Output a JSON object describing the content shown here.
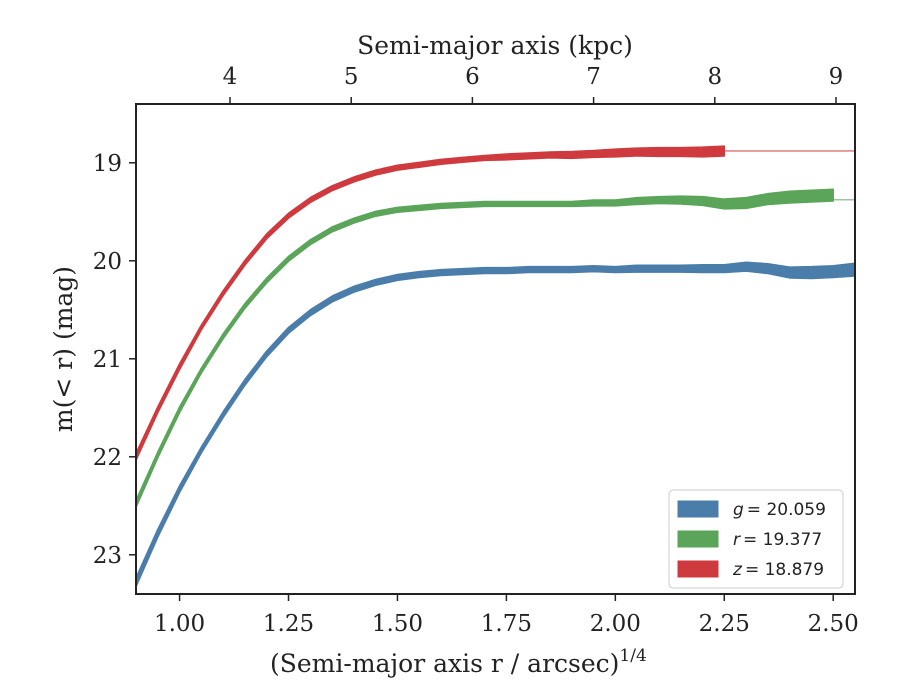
{
  "chart_data": {
    "type": "line",
    "title": "",
    "xlabel": "(Semi-major axis r / arcsec)",
    "xlabel_superscript": "1/4",
    "top_xlabel": "Semi-major axis (kpc)",
    "ylabel": "m(< r) (mag)",
    "xlim": [
      0.9,
      2.55
    ],
    "ylim": [
      23.4,
      18.4
    ],
    "y_inverted": true,
    "xticks": [
      1.0,
      1.25,
      1.5,
      1.75,
      2.0,
      2.25,
      2.5
    ],
    "xtick_labels": [
      "1.00",
      "1.25",
      "1.50",
      "1.75",
      "2.00",
      "2.25",
      "2.50"
    ],
    "top_xticks_kpc": [
      4,
      5,
      6,
      7,
      8,
      9
    ],
    "top_xtick_labels": [
      "4",
      "5",
      "6",
      "7",
      "8",
      "9"
    ],
    "yticks": [
      19,
      20,
      21,
      22,
      23
    ],
    "ytick_labels": [
      "19",
      "20",
      "21",
      "22",
      "23"
    ],
    "grid": false,
    "legend_position": "bottom-right",
    "series": [
      {
        "name": "g = 20.059",
        "label_var": "g",
        "label_value": "= 20.059",
        "color": "#4a7daa",
        "asymptote": 20.059,
        "x": [
          0.9,
          0.95,
          1.0,
          1.05,
          1.1,
          1.15,
          1.2,
          1.25,
          1.3,
          1.35,
          1.4,
          1.45,
          1.5,
          1.55,
          1.6,
          1.65,
          1.7,
          1.75,
          1.8,
          1.85,
          1.9,
          1.95,
          2.0,
          2.05,
          2.1,
          2.15,
          2.2,
          2.25,
          2.3,
          2.35,
          2.4,
          2.45,
          2.5,
          2.55
        ],
        "y": [
          23.28,
          22.78,
          22.33,
          21.93,
          21.57,
          21.24,
          20.95,
          20.71,
          20.53,
          20.39,
          20.29,
          20.22,
          20.17,
          20.14,
          20.12,
          20.11,
          20.1,
          20.1,
          20.09,
          20.09,
          20.09,
          20.08,
          20.09,
          20.08,
          20.08,
          20.08,
          20.08,
          20.08,
          20.06,
          20.08,
          20.12,
          20.12,
          20.11,
          20.09
        ],
        "band": [
          0.045,
          0.04,
          0.035,
          0.03,
          0.03,
          0.03,
          0.03,
          0.03,
          0.03,
          0.03,
          0.03,
          0.03,
          0.03,
          0.03,
          0.03,
          0.03,
          0.03,
          0.03,
          0.03,
          0.03,
          0.03,
          0.03,
          0.03,
          0.035,
          0.035,
          0.035,
          0.04,
          0.04,
          0.045,
          0.05,
          0.055,
          0.06,
          0.06,
          0.065
        ]
      },
      {
        "name": "r = 19.377",
        "label_var": "r",
        "label_value": "= 19.377",
        "color": "#5aa55a",
        "asymptote": 19.377,
        "x": [
          0.9,
          0.95,
          1.0,
          1.05,
          1.1,
          1.15,
          1.2,
          1.25,
          1.3,
          1.35,
          1.4,
          1.45,
          1.5,
          1.55,
          1.6,
          1.65,
          1.7,
          1.75,
          1.8,
          1.85,
          1.9,
          1.95,
          2.0,
          2.05,
          2.1,
          2.15,
          2.2,
          2.25,
          2.3,
          2.35,
          2.4,
          2.45,
          2.5
        ],
        "y": [
          22.48,
          21.98,
          21.52,
          21.12,
          20.77,
          20.46,
          20.2,
          19.98,
          19.81,
          19.68,
          19.59,
          19.52,
          19.48,
          19.46,
          19.44,
          19.43,
          19.42,
          19.42,
          19.42,
          19.42,
          19.42,
          19.41,
          19.41,
          19.39,
          19.38,
          19.38,
          19.39,
          19.42,
          19.41,
          19.37,
          19.35,
          19.34,
          19.33
        ],
        "band": [
          0.035,
          0.03,
          0.03,
          0.025,
          0.025,
          0.025,
          0.025,
          0.025,
          0.025,
          0.025,
          0.025,
          0.025,
          0.025,
          0.025,
          0.025,
          0.025,
          0.025,
          0.025,
          0.025,
          0.025,
          0.025,
          0.03,
          0.03,
          0.035,
          0.035,
          0.04,
          0.045,
          0.05,
          0.055,
          0.055,
          0.06,
          0.06,
          0.06
        ]
      },
      {
        "name": "z = 18.879",
        "label_var": "z",
        "label_value": "= 18.879",
        "color": "#cf3a3e",
        "asymptote": 18.879,
        "x": [
          0.9,
          0.95,
          1.0,
          1.05,
          1.1,
          1.15,
          1.2,
          1.25,
          1.3,
          1.35,
          1.4,
          1.45,
          1.5,
          1.55,
          1.6,
          1.65,
          1.7,
          1.75,
          1.8,
          1.85,
          1.9,
          1.95,
          2.0,
          2.05,
          2.1,
          2.15,
          2.2,
          2.25
        ],
        "y": [
          22.0,
          21.52,
          21.08,
          20.68,
          20.33,
          20.02,
          19.75,
          19.54,
          19.38,
          19.26,
          19.17,
          19.1,
          19.05,
          19.02,
          18.99,
          18.97,
          18.95,
          18.94,
          18.93,
          18.92,
          18.92,
          18.91,
          18.9,
          18.89,
          18.89,
          18.89,
          18.89,
          18.88
        ],
        "band": [
          0.035,
          0.03,
          0.03,
          0.025,
          0.025,
          0.025,
          0.025,
          0.025,
          0.025,
          0.025,
          0.025,
          0.025,
          0.025,
          0.025,
          0.025,
          0.025,
          0.025,
          0.03,
          0.03,
          0.03,
          0.035,
          0.035,
          0.04,
          0.04,
          0.045,
          0.045,
          0.05,
          0.05
        ]
      }
    ]
  }
}
